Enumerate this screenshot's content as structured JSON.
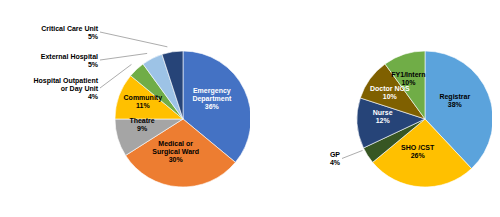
{
  "chart_data": [
    {
      "type": "pie",
      "categories": [
        "Emergency\nDepartment",
        "Medical or\nSurgical Ward",
        "Theatre",
        "Community",
        "Hospital Outpatient\nor Day Unit",
        "External Hospital",
        "Critical Care Unit"
      ],
      "values": [
        36,
        30,
        9,
        11,
        4,
        5,
        5
      ],
      "value_labels": [
        "36%",
        "30%",
        "9%",
        "11%",
        "4%",
        "5%",
        "5%"
      ],
      "colors": [
        "#4472C4",
        "#ED7D31",
        "#A5A5A5",
        "#FFC000",
        "#70AD47",
        "#9DC3E6",
        "#264478"
      ],
      "data_labels": true
    },
    {
      "type": "pie",
      "categories": [
        "Registrar",
        "SHO /CST",
        "GP",
        "Nurse",
        "Doctor NOS",
        "FY1/Intern"
      ],
      "values": [
        38,
        26,
        4,
        12,
        10,
        10
      ],
      "value_labels": [
        "38%",
        "26%",
        "4%",
        "12%",
        "10%",
        "10%"
      ],
      "colors": [
        "#5BA3DC",
        "#FFC000",
        "#375623",
        "#264478",
        "#7F6000",
        "#70AD47"
      ],
      "data_labels": true
    }
  ]
}
